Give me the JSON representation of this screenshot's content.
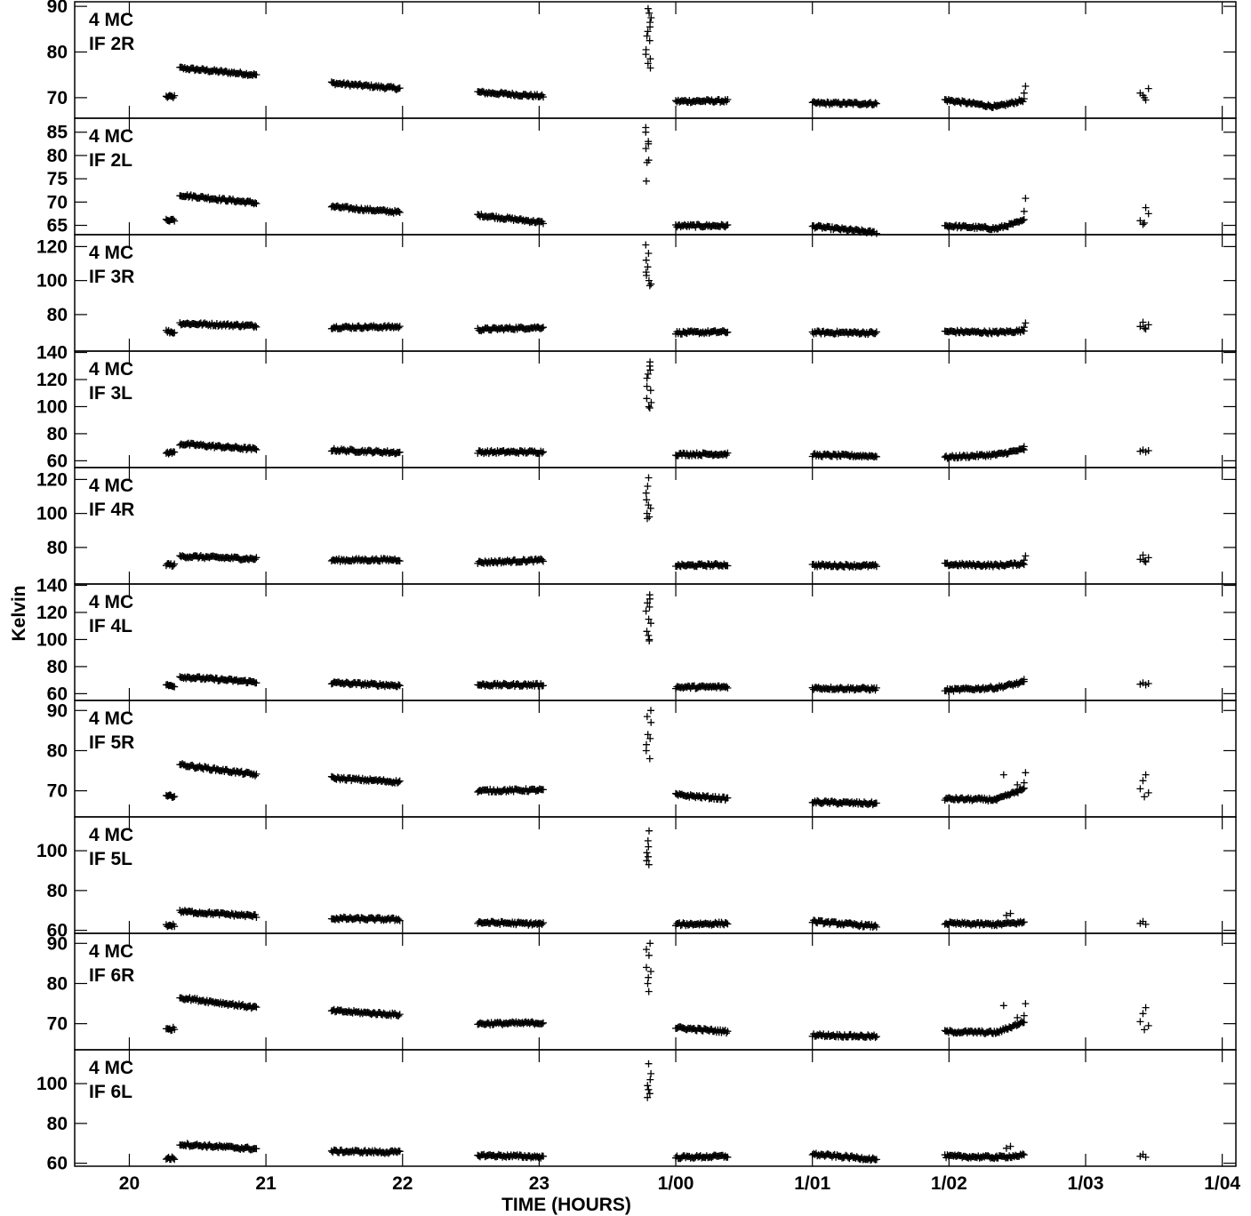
{
  "chart_data": {
    "type": "scatter",
    "marker": "plus",
    "xlabel": "TIME (HOURS)",
    "ylabel": "Kelvin",
    "x_unit": "hours",
    "x_range": [
      19.6,
      28.1
    ],
    "x_ticks": [
      {
        "value": 20,
        "label": "20"
      },
      {
        "value": 21,
        "label": "21"
      },
      {
        "value": 22,
        "label": "22"
      },
      {
        "value": 23,
        "label": "23"
      },
      {
        "value": 24,
        "label": "1/00"
      },
      {
        "value": 25,
        "label": "1/01"
      },
      {
        "value": 26,
        "label": "1/02"
      },
      {
        "value": 27,
        "label": "1/03"
      },
      {
        "value": 28,
        "label": "1/04"
      }
    ],
    "panels": [
      {
        "label1": "4 MC",
        "label2": "IF 2R",
        "ylim": [
          65.5,
          91
        ],
        "yticks": [
          70,
          80,
          90
        ],
        "segments": [
          [
            20.27,
            20.33,
            70.2,
            70.2
          ],
          [
            20.37,
            20.93,
            76.5,
            75.0
          ],
          [
            21.48,
            21.98,
            73.2,
            72.0
          ],
          [
            22.55,
            23.03,
            71.2,
            70.3
          ],
          [
            24.0,
            24.38,
            69.2,
            69.3
          ],
          [
            25.0,
            25.47,
            68.8,
            68.7
          ],
          [
            25.97,
            26.35,
            69.5,
            68.0
          ],
          [
            26.35,
            26.55,
            68.0,
            69.5
          ]
        ],
        "spike": {
          "x": 23.8,
          "values": [
            89.5,
            88.5,
            87.5,
            86.5,
            85.5,
            84.5,
            83.5,
            82.5,
            80.5,
            79.5,
            78.5,
            77.5,
            76.5
          ]
        },
        "extra": [
          [
            26.55,
            71.0
          ],
          [
            26.56,
            72.5
          ],
          [
            27.4,
            71.0
          ],
          [
            27.42,
            70.5
          ],
          [
            27.44,
            69.5
          ],
          [
            27.46,
            72.0
          ],
          [
            27.43,
            70.0
          ]
        ]
      },
      {
        "label1": "4 MC",
        "label2": "IF 2L",
        "ylim": [
          63,
          88
        ],
        "yticks": [
          65,
          70,
          75,
          80,
          85
        ],
        "segments": [
          [
            20.27,
            20.33,
            66.2,
            66.2
          ],
          [
            20.37,
            20.93,
            71.5,
            69.8
          ],
          [
            21.48,
            21.98,
            69.0,
            67.8
          ],
          [
            22.55,
            23.03,
            67.2,
            65.6
          ],
          [
            24.0,
            24.38,
            64.9,
            64.9
          ],
          [
            25.0,
            25.47,
            64.8,
            63.4
          ],
          [
            25.97,
            26.35,
            64.9,
            64.3
          ],
          [
            26.35,
            26.55,
            64.3,
            66.0
          ]
        ],
        "spike": {
          "x": 23.8,
          "values": [
            86.0,
            85.0,
            83.0,
            82.5,
            81.5,
            79.0,
            78.5,
            74.5
          ]
        },
        "extra": [
          [
            26.55,
            68.0
          ],
          [
            26.56,
            70.8
          ],
          [
            27.4,
            66.0
          ],
          [
            27.42,
            65.2
          ],
          [
            27.44,
            68.8
          ],
          [
            27.46,
            67.5
          ],
          [
            27.43,
            65.5
          ]
        ]
      },
      {
        "label1": "4 MC",
        "label2": "IF 3R",
        "ylim": [
          58.5,
          127
        ],
        "yticks": [
          80,
          100,
          120
        ],
        "segments": [
          [
            20.27,
            20.33,
            70.2,
            69.5
          ],
          [
            20.37,
            20.93,
            74.8,
            73.3
          ],
          [
            21.48,
            21.98,
            72.5,
            72.8
          ],
          [
            22.55,
            23.03,
            71.2,
            72.5
          ],
          [
            24.0,
            24.38,
            69.3,
            69.8
          ],
          [
            25.0,
            25.47,
            69.5,
            69.2
          ],
          [
            25.97,
            26.35,
            70.0,
            69.5
          ],
          [
            26.35,
            26.55,
            69.5,
            70.5
          ]
        ],
        "spike": {
          "x": 23.8,
          "values": [
            121,
            116,
            112,
            108,
            105,
            103,
            100,
            98,
            97
          ]
        },
        "extra": [
          [
            26.55,
            72.5
          ],
          [
            26.56,
            75.0
          ],
          [
            27.4,
            73.0
          ],
          [
            27.42,
            75.5
          ],
          [
            27.44,
            71.5
          ],
          [
            27.46,
            74.0
          ],
          [
            27.43,
            72.0
          ]
        ]
      },
      {
        "label1": "4 MC",
        "label2": "IF 3L",
        "ylim": [
          55,
          141
        ],
        "yticks": [
          60,
          80,
          100,
          120,
          140
        ],
        "segments": [
          [
            20.27,
            20.33,
            66.0,
            66.0
          ],
          [
            20.37,
            20.93,
            72.5,
            68.5
          ],
          [
            21.48,
            21.98,
            68.0,
            66.0
          ],
          [
            22.55,
            23.03,
            66.5,
            66.5
          ],
          [
            24.0,
            24.38,
            64.8,
            65.0
          ],
          [
            25.0,
            25.47,
            64.2,
            63.5
          ],
          [
            25.97,
            26.35,
            62.5,
            64.5
          ],
          [
            26.35,
            26.55,
            64.5,
            68.5
          ]
        ],
        "spike": {
          "x": 23.8,
          "values": [
            133,
            130,
            127,
            124,
            121,
            115,
            112,
            106,
            103,
            100,
            99
          ]
        },
        "extra": [
          [
            26.55,
            70.5
          ],
          [
            27.4,
            67.0
          ],
          [
            27.42,
            68.0
          ],
          [
            27.44,
            66.5
          ],
          [
            27.46,
            67.5
          ]
        ]
      },
      {
        "label1": "4 MC",
        "label2": "IF 4R",
        "ylim": [
          58.5,
          127
        ],
        "yticks": [
          80,
          100,
          120
        ],
        "segments": [
          [
            20.27,
            20.33,
            70.2,
            69.5
          ],
          [
            20.37,
            20.93,
            74.8,
            73.3
          ],
          [
            21.48,
            21.98,
            72.5,
            72.8
          ],
          [
            22.55,
            23.03,
            71.2,
            72.5
          ],
          [
            24.0,
            24.38,
            69.3,
            69.8
          ],
          [
            25.0,
            25.47,
            69.5,
            69.2
          ],
          [
            25.97,
            26.35,
            70.0,
            69.5
          ],
          [
            26.35,
            26.55,
            69.5,
            70.5
          ]
        ],
        "spike": {
          "x": 23.8,
          "values": [
            121,
            116,
            112,
            108,
            105,
            103,
            100,
            98,
            97
          ]
        },
        "extra": [
          [
            26.55,
            72.5
          ],
          [
            26.56,
            75.0
          ],
          [
            27.4,
            73.0
          ],
          [
            27.42,
            75.5
          ],
          [
            27.44,
            71.5
          ],
          [
            27.46,
            74.0
          ],
          [
            27.43,
            72.0
          ]
        ]
      },
      {
        "label1": "4 MC",
        "label2": "IF 4L",
        "ylim": [
          55,
          141
        ],
        "yticks": [
          60,
          80,
          100,
          120,
          140
        ],
        "segments": [
          [
            20.27,
            20.33,
            66.0,
            66.0
          ],
          [
            20.37,
            20.93,
            72.5,
            68.5
          ],
          [
            21.48,
            21.98,
            68.0,
            66.0
          ],
          [
            22.55,
            23.03,
            66.5,
            66.5
          ],
          [
            24.0,
            24.38,
            64.8,
            65.0
          ],
          [
            25.0,
            25.47,
            64.2,
            63.5
          ],
          [
            25.97,
            26.35,
            62.5,
            64.5
          ],
          [
            26.35,
            26.55,
            64.5,
            68.5
          ]
        ],
        "spike": {
          "x": 23.8,
          "values": [
            133,
            130,
            127,
            124,
            121,
            115,
            112,
            106,
            103,
            100,
            99
          ]
        },
        "extra": [
          [
            26.55,
            70.5
          ],
          [
            27.4,
            67.0
          ],
          [
            27.42,
            68.0
          ],
          [
            27.44,
            66.5
          ],
          [
            27.46,
            67.5
          ]
        ]
      },
      {
        "label1": "4 MC",
        "label2": "IF 5R",
        "ylim": [
          63.5,
          92.5
        ],
        "yticks": [
          70,
          80,
          90
        ],
        "segments": [
          [
            20.27,
            20.33,
            68.5,
            68.8
          ],
          [
            20.37,
            20.93,
            76.5,
            74.0
          ],
          [
            21.48,
            21.98,
            73.2,
            72.2
          ],
          [
            22.55,
            23.03,
            70.0,
            70.2
          ],
          [
            24.0,
            24.38,
            69.0,
            68.0
          ],
          [
            25.0,
            25.47,
            67.2,
            66.8
          ],
          [
            25.97,
            26.35,
            68.0,
            67.8
          ],
          [
            26.35,
            26.55,
            67.8,
            70.5
          ]
        ],
        "spike": {
          "x": 23.8,
          "values": [
            90.0,
            88.5,
            87.0,
            84.0,
            83.0,
            81.5,
            80.0,
            78.0
          ]
        },
        "extra": [
          [
            26.55,
            72.0
          ],
          [
            26.56,
            74.5
          ],
          [
            26.4,
            74.0
          ],
          [
            26.5,
            71.5
          ],
          [
            27.4,
            70.5
          ],
          [
            27.42,
            72.5
          ],
          [
            27.44,
            74.0
          ],
          [
            27.46,
            69.5
          ],
          [
            27.43,
            68.5
          ]
        ]
      },
      {
        "label1": "4 MC",
        "label2": "IF 5L",
        "ylim": [
          58.5,
          117
        ],
        "yticks": [
          60,
          80,
          100
        ],
        "segments": [
          [
            20.27,
            20.33,
            62.5,
            62.5
          ],
          [
            20.37,
            20.93,
            69.5,
            67.2
          ],
          [
            21.48,
            21.98,
            66.0,
            65.5
          ],
          [
            22.55,
            23.03,
            64.0,
            63.2
          ],
          [
            24.0,
            24.38,
            63.0,
            63.5
          ],
          [
            25.0,
            25.47,
            64.5,
            62.0
          ],
          [
            25.97,
            26.35,
            63.5,
            63.0
          ],
          [
            26.35,
            26.55,
            63.0,
            64.0
          ]
        ],
        "spike": {
          "x": 23.8,
          "values": [
            110,
            105,
            102,
            99,
            97,
            95,
            93
          ]
        },
        "extra": [
          [
            26.42,
            67.5
          ],
          [
            26.45,
            68.5
          ],
          [
            27.4,
            63.5
          ],
          [
            27.42,
            64.5
          ],
          [
            27.44,
            63.0
          ]
        ]
      },
      {
        "label1": "4 MC",
        "label2": "IF 6R",
        "ylim": [
          63.5,
          92.5
        ],
        "yticks": [
          70,
          80,
          90
        ],
        "segments": [
          [
            20.27,
            20.33,
            68.5,
            68.8
          ],
          [
            20.37,
            20.93,
            76.5,
            74.0
          ],
          [
            21.48,
            21.98,
            73.2,
            72.2
          ],
          [
            22.55,
            23.03,
            70.0,
            70.2
          ],
          [
            24.0,
            24.38,
            69.0,
            68.0
          ],
          [
            25.0,
            25.47,
            67.2,
            66.8
          ],
          [
            25.97,
            26.35,
            68.0,
            67.8
          ],
          [
            26.35,
            26.55,
            67.8,
            70.5
          ]
        ],
        "spike": {
          "x": 23.8,
          "values": [
            90.0,
            88.5,
            87.0,
            84.0,
            83.0,
            81.5,
            80.0,
            78.0
          ]
        },
        "extra": [
          [
            26.55,
            72.0
          ],
          [
            26.56,
            75.0
          ],
          [
            26.4,
            74.5
          ],
          [
            26.5,
            71.5
          ],
          [
            27.4,
            70.5
          ],
          [
            27.42,
            72.5
          ],
          [
            27.44,
            74.0
          ],
          [
            27.46,
            69.5
          ],
          [
            27.43,
            68.5
          ]
        ]
      },
      {
        "label1": "4 MC",
        "label2": "IF 6L",
        "ylim": [
          58.5,
          117
        ],
        "yticks": [
          60,
          80,
          100
        ],
        "segments": [
          [
            20.27,
            20.33,
            62.5,
            62.5
          ],
          [
            20.37,
            20.93,
            69.5,
            67.2
          ],
          [
            21.48,
            21.98,
            66.0,
            65.5
          ],
          [
            22.55,
            23.03,
            64.0,
            63.2
          ],
          [
            24.0,
            24.38,
            63.0,
            63.5
          ],
          [
            25.0,
            25.47,
            64.5,
            62.0
          ],
          [
            25.97,
            26.35,
            63.5,
            63.0
          ],
          [
            26.35,
            26.55,
            63.0,
            64.0
          ]
        ],
        "spike": {
          "x": 23.8,
          "values": [
            110,
            105,
            102,
            99,
            97,
            95,
            93
          ]
        },
        "extra": [
          [
            26.42,
            67.5
          ],
          [
            26.45,
            68.5
          ],
          [
            27.4,
            63.5
          ],
          [
            27.42,
            64.5
          ],
          [
            27.44,
            63.0
          ]
        ]
      }
    ]
  }
}
